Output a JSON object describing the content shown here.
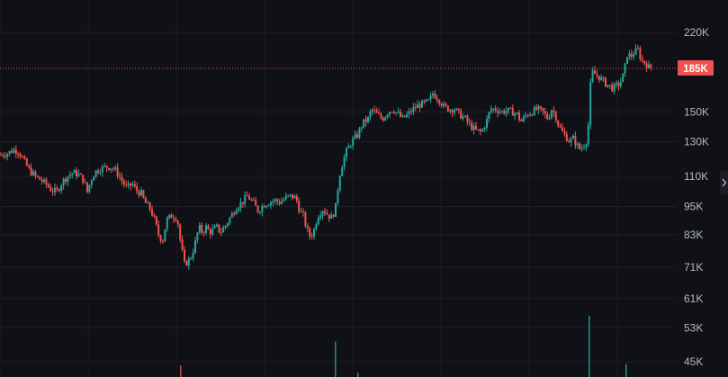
{
  "chart_data": {
    "type": "candlestick",
    "scale": "log",
    "grid": true,
    "up_color": "#26a69a",
    "down_color": "#ef5350",
    "current_price_label": "185K",
    "current_price": 185000,
    "y_ticks": [
      {
        "label": "220K",
        "value": 220000
      },
      {
        "label": "150K",
        "value": 150000
      },
      {
        "label": "130K",
        "value": 130000
      },
      {
        "label": "110K",
        "value": 110000
      },
      {
        "label": "95K",
        "value": 95000
      },
      {
        "label": "83K",
        "value": 83000
      },
      {
        "label": "71K",
        "value": 71000
      },
      {
        "label": "61K",
        "value": 61000
      },
      {
        "label": "53K",
        "value": 53000
      },
      {
        "label": "45K",
        "value": 45000
      }
    ],
    "close_path": [
      [
        0,
        122000
      ],
      [
        8,
        123000
      ],
      [
        14,
        125000
      ],
      [
        20,
        124000
      ],
      [
        26,
        118000
      ],
      [
        32,
        113000
      ],
      [
        38,
        110000
      ],
      [
        44,
        108000
      ],
      [
        50,
        106000
      ],
      [
        56,
        103000
      ],
      [
        62,
        102000
      ],
      [
        68,
        107000
      ],
      [
        74,
        110000
      ],
      [
        80,
        112000
      ],
      [
        86,
        111000
      ],
      [
        92,
        108000
      ],
      [
        96,
        102000
      ],
      [
        100,
        108000
      ],
      [
        104,
        112000
      ],
      [
        110,
        114000
      ],
      [
        116,
        115000
      ],
      [
        122,
        115000
      ],
      [
        128,
        113000
      ],
      [
        134,
        108000
      ],
      [
        140,
        104000
      ],
      [
        146,
        106000
      ],
      [
        150,
        103000
      ],
      [
        156,
        101000
      ],
      [
        160,
        97000
      ],
      [
        166,
        94000
      ],
      [
        170,
        90000
      ],
      [
        176,
        82000
      ],
      [
        180,
        81000
      ],
      [
        184,
        89000
      ],
      [
        190,
        91000
      ],
      [
        196,
        90000
      ],
      [
        200,
        79000
      ],
      [
        204,
        72000
      ],
      [
        208,
        73000
      ],
      [
        212,
        75000
      ],
      [
        216,
        80000
      ],
      [
        220,
        86000
      ],
      [
        224,
        84000
      ],
      [
        228,
        86000
      ],
      [
        232,
        84000
      ],
      [
        236,
        85000
      ],
      [
        240,
        86000
      ],
      [
        244,
        84000
      ],
      [
        250,
        87000
      ],
      [
        256,
        91000
      ],
      [
        262,
        95000
      ],
      [
        268,
        97000
      ],
      [
        274,
        100000
      ],
      [
        280,
        97000
      ],
      [
        286,
        93000
      ],
      [
        292,
        96000
      ],
      [
        298,
        97000
      ],
      [
        304,
        98000
      ],
      [
        310,
        97000
      ],
      [
        316,
        99000
      ],
      [
        322,
        100000
      ],
      [
        328,
        99000
      ],
      [
        332,
        93000
      ],
      [
        336,
        91000
      ],
      [
        340,
        85000
      ],
      [
        344,
        82000
      ],
      [
        348,
        85000
      ],
      [
        352,
        91000
      ],
      [
        358,
        94000
      ],
      [
        364,
        91000
      ],
      [
        368,
        90000
      ],
      [
        372,
        95000
      ],
      [
        376,
        110000
      ],
      [
        380,
        118000
      ],
      [
        384,
        124000
      ],
      [
        390,
        130000
      ],
      [
        396,
        134000
      ],
      [
        402,
        142000
      ],
      [
        408,
        145000
      ],
      [
        412,
        152000
      ],
      [
        418,
        148000
      ],
      [
        424,
        145000
      ],
      [
        430,
        150000
      ],
      [
        436,
        152000
      ],
      [
        442,
        148000
      ],
      [
        446,
        145000
      ],
      [
        452,
        148000
      ],
      [
        458,
        152000
      ],
      [
        464,
        155000
      ],
      [
        470,
        156000
      ],
      [
        476,
        158000
      ],
      [
        480,
        164000
      ],
      [
        486,
        160000
      ],
      [
        492,
        154000
      ],
      [
        498,
        152000
      ],
      [
        504,
        152000
      ],
      [
        510,
        148000
      ],
      [
        516,
        145000
      ],
      [
        522,
        140000
      ],
      [
        528,
        137000
      ],
      [
        534,
        136000
      ],
      [
        540,
        144000
      ],
      [
        544,
        152000
      ],
      [
        550,
        152000
      ],
      [
        556,
        150000
      ],
      [
        562,
        151000
      ],
      [
        568,
        150000
      ],
      [
        574,
        148000
      ],
      [
        578,
        143000
      ],
      [
        584,
        148000
      ],
      [
        590,
        150000
      ],
      [
        596,
        152000
      ],
      [
        602,
        150000
      ],
      [
        608,
        145000
      ],
      [
        612,
        152000
      ],
      [
        616,
        148000
      ],
      [
        620,
        140000
      ],
      [
        624,
        136000
      ],
      [
        628,
        133000
      ],
      [
        632,
        130000
      ],
      [
        636,
        132000
      ],
      [
        640,
        128000
      ],
      [
        644,
        125000
      ],
      [
        648,
        128000
      ],
      [
        652,
        132000
      ],
      [
        656,
        182000
      ],
      [
        660,
        180000
      ],
      [
        664,
        178000
      ],
      [
        668,
        175000
      ],
      [
        672,
        172000
      ],
      [
        676,
        170000
      ],
      [
        680,
        168000
      ],
      [
        684,
        170000
      ],
      [
        688,
        172000
      ],
      [
        692,
        180000
      ],
      [
        694,
        188000
      ],
      [
        696,
        198000
      ],
      [
        700,
        196000
      ],
      [
        704,
        200000
      ],
      [
        708,
        202000
      ],
      [
        712,
        192000
      ],
      [
        716,
        190000
      ],
      [
        720,
        186000
      ],
      [
        724,
        185000
      ]
    ],
    "volume_spikes": [
      {
        "x": 200,
        "value": 0.19
      },
      {
        "x": 372,
        "value": 0.58
      },
      {
        "x": 397,
        "value": 0.07
      },
      {
        "x": 654,
        "value": 1.0
      },
      {
        "x": 695,
        "value": 0.21
      }
    ]
  }
}
